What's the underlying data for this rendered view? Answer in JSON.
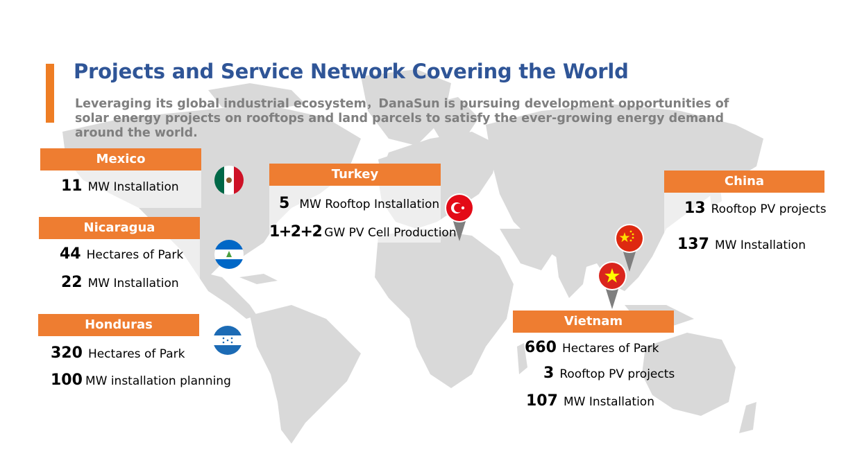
{
  "title": "Projects and Service Network Covering the World",
  "subtitle": "Leveraging its global industrial ecosystem，DanaSun is pursuing development opportunities of solar energy projects on rooftops and land parcels to satisfy the ever-growing energy demand around the world.",
  "colors": {
    "accent": "#ee7d31",
    "title": "#2f5597",
    "subtitle": "#7f7f7f",
    "map": "#d9d9d9"
  },
  "regions": {
    "mexico": {
      "name": "Mexico",
      "flag_icon": "mexico-flag-icon",
      "stats": [
        {
          "value": "11",
          "label": "MW Installation"
        }
      ]
    },
    "nicaragua": {
      "name": "Nicaragua",
      "flag_icon": "nicaragua-flag-icon",
      "stats": [
        {
          "value": "44",
          "label": "Hectares of Park"
        },
        {
          "value": "22",
          "label": "MW Installation"
        }
      ]
    },
    "honduras": {
      "name": "Honduras",
      "flag_icon": "honduras-flag-icon",
      "stats": [
        {
          "value": "320",
          "label": "Hectares of Park"
        },
        {
          "value": "100",
          "label": "MW installation planning"
        }
      ]
    },
    "turkey": {
      "name": "Turkey",
      "flag_icon": "turkey-flag-pin-icon",
      "stats": [
        {
          "value": "5",
          "label": "MW Rooftop Installation"
        },
        {
          "value": "1+2+2",
          "label": "GW PV Cell Production"
        }
      ]
    },
    "china": {
      "name": "China",
      "flag_icon": "china-flag-pin-icon",
      "stats": [
        {
          "value": "13",
          "label": "Rooftop PV projects"
        },
        {
          "value": "137",
          "label": "MW Installation"
        }
      ]
    },
    "vietnam": {
      "name": "Vietnam",
      "flag_icon": "vietnam-flag-pin-icon",
      "stats": [
        {
          "value": "660",
          "label": "Hectares of Park"
        },
        {
          "value": "3",
          "label": "Rooftop PV projects"
        },
        {
          "value": "107",
          "label": "MW Installation"
        }
      ]
    }
  }
}
